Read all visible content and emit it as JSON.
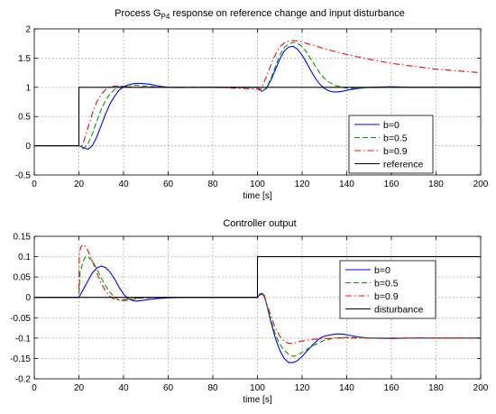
{
  "colors": {
    "b0": "#0000ff",
    "b05": "#009900",
    "b09": "#ff0000",
    "ref": "#000000"
  },
  "chart_data": [
    {
      "type": "line",
      "title_pre": "Process G",
      "title_sub": "P4",
      "title_post": " response on reference change and input disturbance",
      "xlabel": "time [s]",
      "ylabel": "",
      "xlim": [
        0,
        200
      ],
      "ylim": [
        -0.5,
        2
      ],
      "xticks": [
        0,
        20,
        40,
        60,
        80,
        100,
        120,
        140,
        160,
        180,
        200
      ],
      "yticks": [
        -0.5,
        0,
        0.5,
        1,
        1.5,
        2
      ],
      "xtick_labels": [
        "0",
        "20",
        "40",
        "60",
        "80",
        "100",
        "120",
        "140",
        "160",
        "180",
        "200"
      ],
      "ytick_labels": [
        "-0.5",
        "0",
        "0.5",
        "1",
        "1.5",
        "2"
      ],
      "grid": true,
      "legend_position": "bottom-right",
      "series": [
        {
          "name": "b=0",
          "color": "#0000ff",
          "dash": "solid",
          "x": [
            0,
            20,
            22,
            24,
            26,
            28,
            30,
            32,
            34,
            36,
            38,
            40,
            42,
            44,
            46,
            48,
            50,
            52,
            56,
            60,
            64,
            70,
            80,
            90,
            100,
            101,
            102,
            104,
            106,
            108,
            110,
            112,
            114,
            116,
            118,
            120,
            122,
            124,
            126,
            128,
            130,
            132,
            134,
            136,
            138,
            140,
            145,
            150,
            160,
            170,
            200
          ],
          "y": [
            0,
            0,
            -0.03,
            -0.06,
            0,
            0.15,
            0.35,
            0.55,
            0.72,
            0.85,
            0.95,
            1.01,
            1.04,
            1.06,
            1.07,
            1.065,
            1.06,
            1.05,
            1.02,
            1.0,
            0.995,
            0.997,
            1.0,
            1.0,
            1.0,
            0.97,
            0.93,
            0.98,
            1.12,
            1.3,
            1.48,
            1.62,
            1.69,
            1.7,
            1.65,
            1.55,
            1.42,
            1.28,
            1.15,
            1.05,
            0.98,
            0.94,
            0.92,
            0.92,
            0.93,
            0.95,
            0.98,
            1.0,
            1.01,
            1.0,
            1.0
          ]
        },
        {
          "name": "b=0.5",
          "color": "#009900",
          "dash": "dashed",
          "x": [
            0,
            20,
            22,
            24,
            26,
            28,
            30,
            32,
            34,
            36,
            38,
            40,
            42,
            44,
            46,
            50,
            55,
            60,
            70,
            80,
            100,
            101,
            102,
            104,
            106,
            108,
            110,
            112,
            114,
            116,
            118,
            120,
            122,
            124,
            126,
            128,
            130,
            132,
            135,
            138,
            140,
            145,
            150,
            160,
            170,
            200
          ],
          "y": [
            0,
            0,
            -0.05,
            0.03,
            0.2,
            0.42,
            0.62,
            0.78,
            0.89,
            0.96,
            1.0,
            1.03,
            1.04,
            1.04,
            1.035,
            1.02,
            1.005,
            1.0,
            0.998,
            1.0,
            1.0,
            0.96,
            0.93,
            0.99,
            1.15,
            1.35,
            1.55,
            1.68,
            1.74,
            1.77,
            1.75,
            1.7,
            1.6,
            1.48,
            1.36,
            1.24,
            1.15,
            1.09,
            1.03,
            1.0,
            0.985,
            0.985,
            0.995,
            1.0,
            1.0,
            1.0
          ]
        },
        {
          "name": "b=0.9",
          "color": "#ff0000",
          "dash": "dashdot",
          "x": [
            0,
            20,
            21,
            22,
            24,
            26,
            28,
            30,
            32,
            34,
            36,
            38,
            40,
            42,
            44,
            46,
            50,
            55,
            60,
            70,
            80,
            100,
            101,
            102,
            104,
            106,
            108,
            110,
            112,
            114,
            116,
            118,
            120,
            125,
            130,
            140,
            150,
            160,
            170,
            180,
            190,
            200
          ],
          "y": [
            0,
            0,
            -0.02,
            0.05,
            0.3,
            0.55,
            0.75,
            0.88,
            0.96,
            1.01,
            1.02,
            1.02,
            1.015,
            1.01,
            1.005,
            1.0,
            0.998,
            0.998,
            1.0,
            1.0,
            1.0,
            0.97,
            0.95,
            1.0,
            1.18,
            1.38,
            1.56,
            1.69,
            1.76,
            1.79,
            1.8,
            1.79,
            1.77,
            1.72,
            1.66,
            1.56,
            1.48,
            1.41,
            1.36,
            1.31,
            1.28,
            1.25
          ]
        },
        {
          "name": "reference",
          "color": "#000000",
          "dash": "solid",
          "x": [
            0,
            20,
            20,
            200
          ],
          "y": [
            0,
            0,
            1,
            1
          ]
        }
      ]
    },
    {
      "type": "line",
      "title": "Controller output",
      "xlabel": "time [s]",
      "ylabel": "",
      "xlim": [
        0,
        200
      ],
      "ylim": [
        -0.2,
        0.15
      ],
      "xticks": [
        0,
        20,
        40,
        60,
        80,
        100,
        120,
        140,
        160,
        180,
        200
      ],
      "yticks": [
        -0.2,
        -0.15,
        -0.1,
        -0.05,
        0,
        0.05,
        0.1,
        0.15
      ],
      "xtick_labels": [
        "0",
        "20",
        "40",
        "60",
        "80",
        "100",
        "120",
        "140",
        "160",
        "180",
        "200"
      ],
      "ytick_labels": [
        "-0.2",
        "-0.15",
        "-0.1",
        "-0.05",
        "0",
        "0.05",
        "0.1",
        "0.15"
      ],
      "grid": true,
      "legend_position": "top-right",
      "series": [
        {
          "name": "b=0",
          "color": "#0000ff",
          "dash": "solid",
          "x": [
            0,
            20,
            22,
            24,
            26,
            28,
            30,
            32,
            34,
            36,
            38,
            40,
            42,
            44,
            46,
            48,
            50,
            55,
            60,
            70,
            80,
            100,
            101,
            102,
            103,
            104,
            106,
            108,
            110,
            112,
            114,
            116,
            118,
            120,
            122,
            125,
            128,
            130,
            135,
            138,
            140,
            145,
            150,
            160,
            170,
            200
          ],
          "y": [
            0,
            0,
            0.02,
            0.04,
            0.06,
            0.072,
            0.077,
            0.073,
            0.062,
            0.045,
            0.025,
            0.008,
            -0.003,
            -0.008,
            -0.009,
            -0.008,
            -0.006,
            -0.003,
            -0.001,
            0,
            0,
            0,
            0.008,
            0.01,
            0.005,
            -0.015,
            -0.06,
            -0.1,
            -0.13,
            -0.15,
            -0.16,
            -0.16,
            -0.155,
            -0.145,
            -0.133,
            -0.115,
            -0.1,
            -0.095,
            -0.09,
            -0.09,
            -0.092,
            -0.097,
            -0.1,
            -0.101,
            -0.1,
            -0.1
          ]
        },
        {
          "name": "b=0.5",
          "color": "#009900",
          "dash": "dashed",
          "x": [
            0,
            20,
            20.5,
            22,
            23,
            24,
            26,
            28,
            30,
            32,
            34,
            36,
            38,
            40,
            42,
            44,
            48,
            55,
            60,
            70,
            80,
            100,
            101,
            102,
            103,
            104,
            106,
            108,
            110,
            112,
            114,
            116,
            118,
            120,
            125,
            130,
            135,
            140,
            145,
            150,
            160,
            200
          ],
          "y": [
            0,
            0,
            0.06,
            0.09,
            0.1,
            0.1,
            0.09,
            0.07,
            0.048,
            0.028,
            0.012,
            0.0,
            -0.006,
            -0.008,
            -0.007,
            -0.005,
            -0.002,
            0,
            0,
            0,
            0,
            0,
            0.006,
            0.008,
            0.003,
            -0.015,
            -0.055,
            -0.09,
            -0.115,
            -0.13,
            -0.14,
            -0.145,
            -0.142,
            -0.135,
            -0.118,
            -0.105,
            -0.1,
            -0.098,
            -0.099,
            -0.1,
            -0.1,
            -0.1
          ]
        },
        {
          "name": "b=0.9",
          "color": "#ff0000",
          "dash": "dashdot",
          "x": [
            0,
            20,
            20.2,
            21,
            22,
            23,
            24,
            26,
            28,
            30,
            32,
            34,
            36,
            38,
            40,
            42,
            45,
            50,
            55,
            60,
            70,
            80,
            100,
            101,
            102,
            103,
            104,
            106,
            108,
            110,
            112,
            114,
            116,
            118,
            120,
            125,
            130,
            135,
            140,
            150,
            160,
            200
          ],
          "y": [
            0,
            0,
            0.11,
            0.125,
            0.13,
            0.125,
            0.115,
            0.09,
            0.06,
            0.035,
            0.015,
            0.002,
            -0.005,
            -0.007,
            -0.006,
            -0.004,
            -0.002,
            0,
            0,
            0,
            0,
            0,
            0,
            0.005,
            0.007,
            0.002,
            -0.012,
            -0.045,
            -0.075,
            -0.095,
            -0.108,
            -0.113,
            -0.113,
            -0.11,
            -0.107,
            -0.103,
            -0.101,
            -0.1,
            -0.1,
            -0.1,
            -0.1,
            -0.1
          ]
        },
        {
          "name": "disturbance",
          "color": "#000000",
          "dash": "solid",
          "x": [
            0,
            100,
            100,
            200
          ],
          "y": [
            0,
            0,
            0.1,
            0.1
          ]
        }
      ]
    }
  ]
}
